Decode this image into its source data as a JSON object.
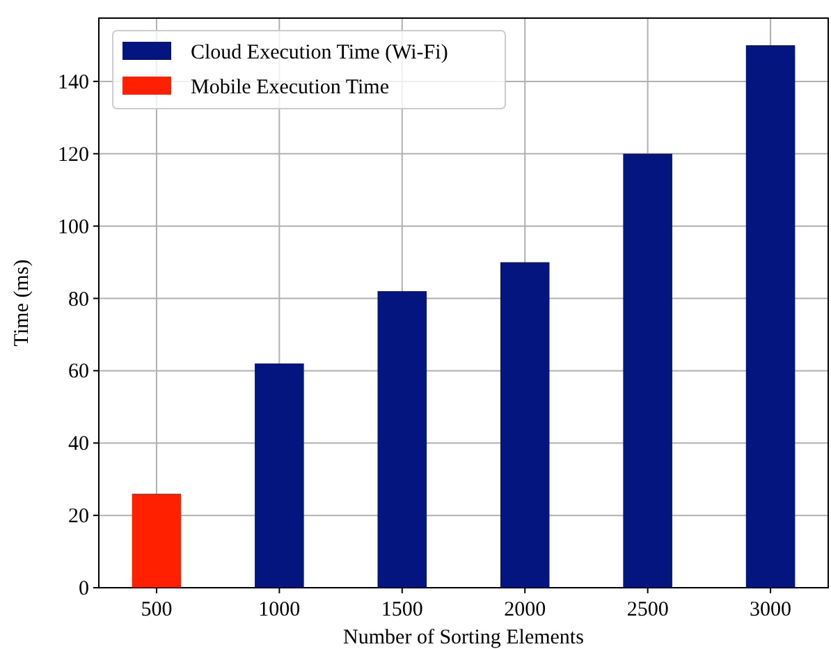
{
  "chart_data": {
    "type": "bar",
    "xlabel": "Number of Sorting Elements",
    "ylabel": "Time (ms)",
    "x": [
      500,
      1000,
      1500,
      2000,
      2500,
      3000
    ],
    "series": [
      {
        "name": "Cloud Execution Time (Wi-Fi)",
        "color": "#041580",
        "values": [
          null,
          62,
          82,
          90,
          120,
          150
        ]
      },
      {
        "name": "Mobile Execution Time",
        "color": "#ff2000",
        "values": [
          26,
          null,
          null,
          null,
          null,
          null
        ]
      }
    ],
    "xlim": [
      265,
      3235
    ],
    "xticks": [
      500,
      1000,
      1500,
      2000,
      2500,
      3000
    ],
    "ylim": [
      0,
      157.5
    ],
    "yticks": [
      0,
      20,
      40,
      60,
      80,
      100,
      120,
      140
    ],
    "grid": true,
    "legend": "top left"
  }
}
